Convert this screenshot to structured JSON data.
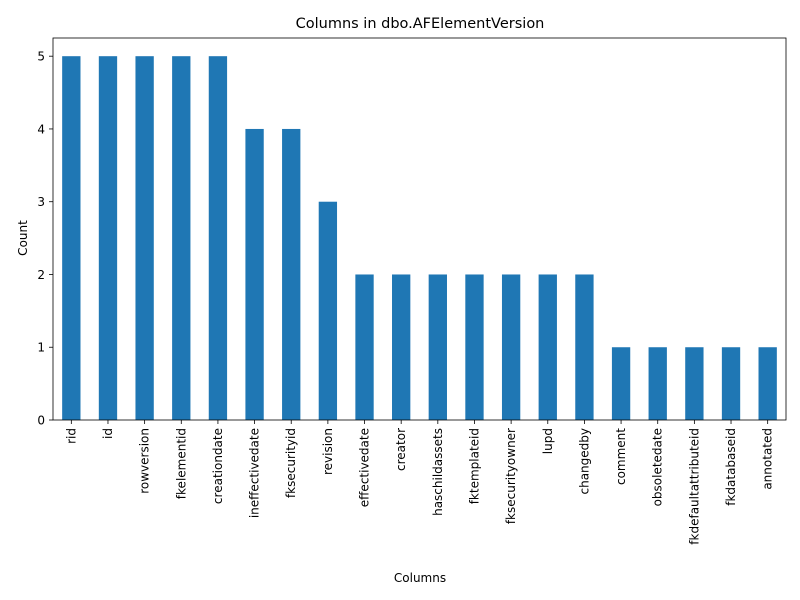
{
  "chart_data": {
    "type": "bar",
    "title": "Columns in dbo.AFElementVersion",
    "xlabel": "Columns",
    "ylabel": "Count",
    "categories": [
      "rid",
      "id",
      "rowversion",
      "fkelementid",
      "creationdate",
      "ineffectivedate",
      "fksecurityid",
      "revision",
      "effectivedate",
      "creator",
      "haschildassets",
      "fktemplateid",
      "fksecurityowner",
      "lupd",
      "changedby",
      "comment",
      "obsoletedate",
      "fkdefaultattributeid",
      "fkdatabaseid",
      "annotated"
    ],
    "values": [
      5,
      5,
      5,
      5,
      5,
      4,
      4,
      3,
      2,
      2,
      2,
      2,
      2,
      2,
      2,
      1,
      1,
      1,
      1,
      1
    ],
    "yticks": [
      0,
      1,
      2,
      3,
      4,
      5
    ],
    "ylim": [
      0,
      5.25
    ],
    "bar_color": "#1f77b4",
    "grid": false,
    "legend": "none"
  }
}
